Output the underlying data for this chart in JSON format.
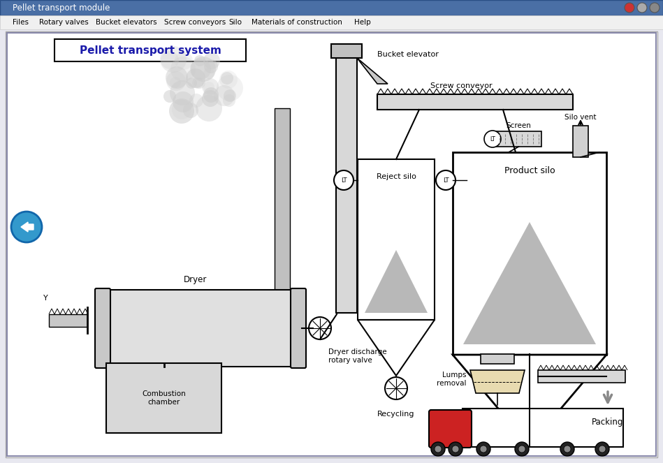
{
  "title": "Pellet transport module",
  "menu_items": [
    "Files",
    "Rotary valves",
    "Bucket elevators",
    "Screw conveyors",
    "Silo",
    "Materials of construction",
    "Help"
  ],
  "subtitle": "Pellet transport system",
  "bg_color": "#e8e8f0",
  "window_bg": "#f0f0f0",
  "diagram_bg": "#ffffff",
  "gray_light": "#d0d0d0",
  "gray_medium": "#b0b0b0",
  "gray_dark": "#808080",
  "gray_fill": "#c8c8c8",
  "silo_fill": "#b8b8b8",
  "dryer_fill": "#dcdcdc",
  "combustion_fill": "#d0d0d0"
}
